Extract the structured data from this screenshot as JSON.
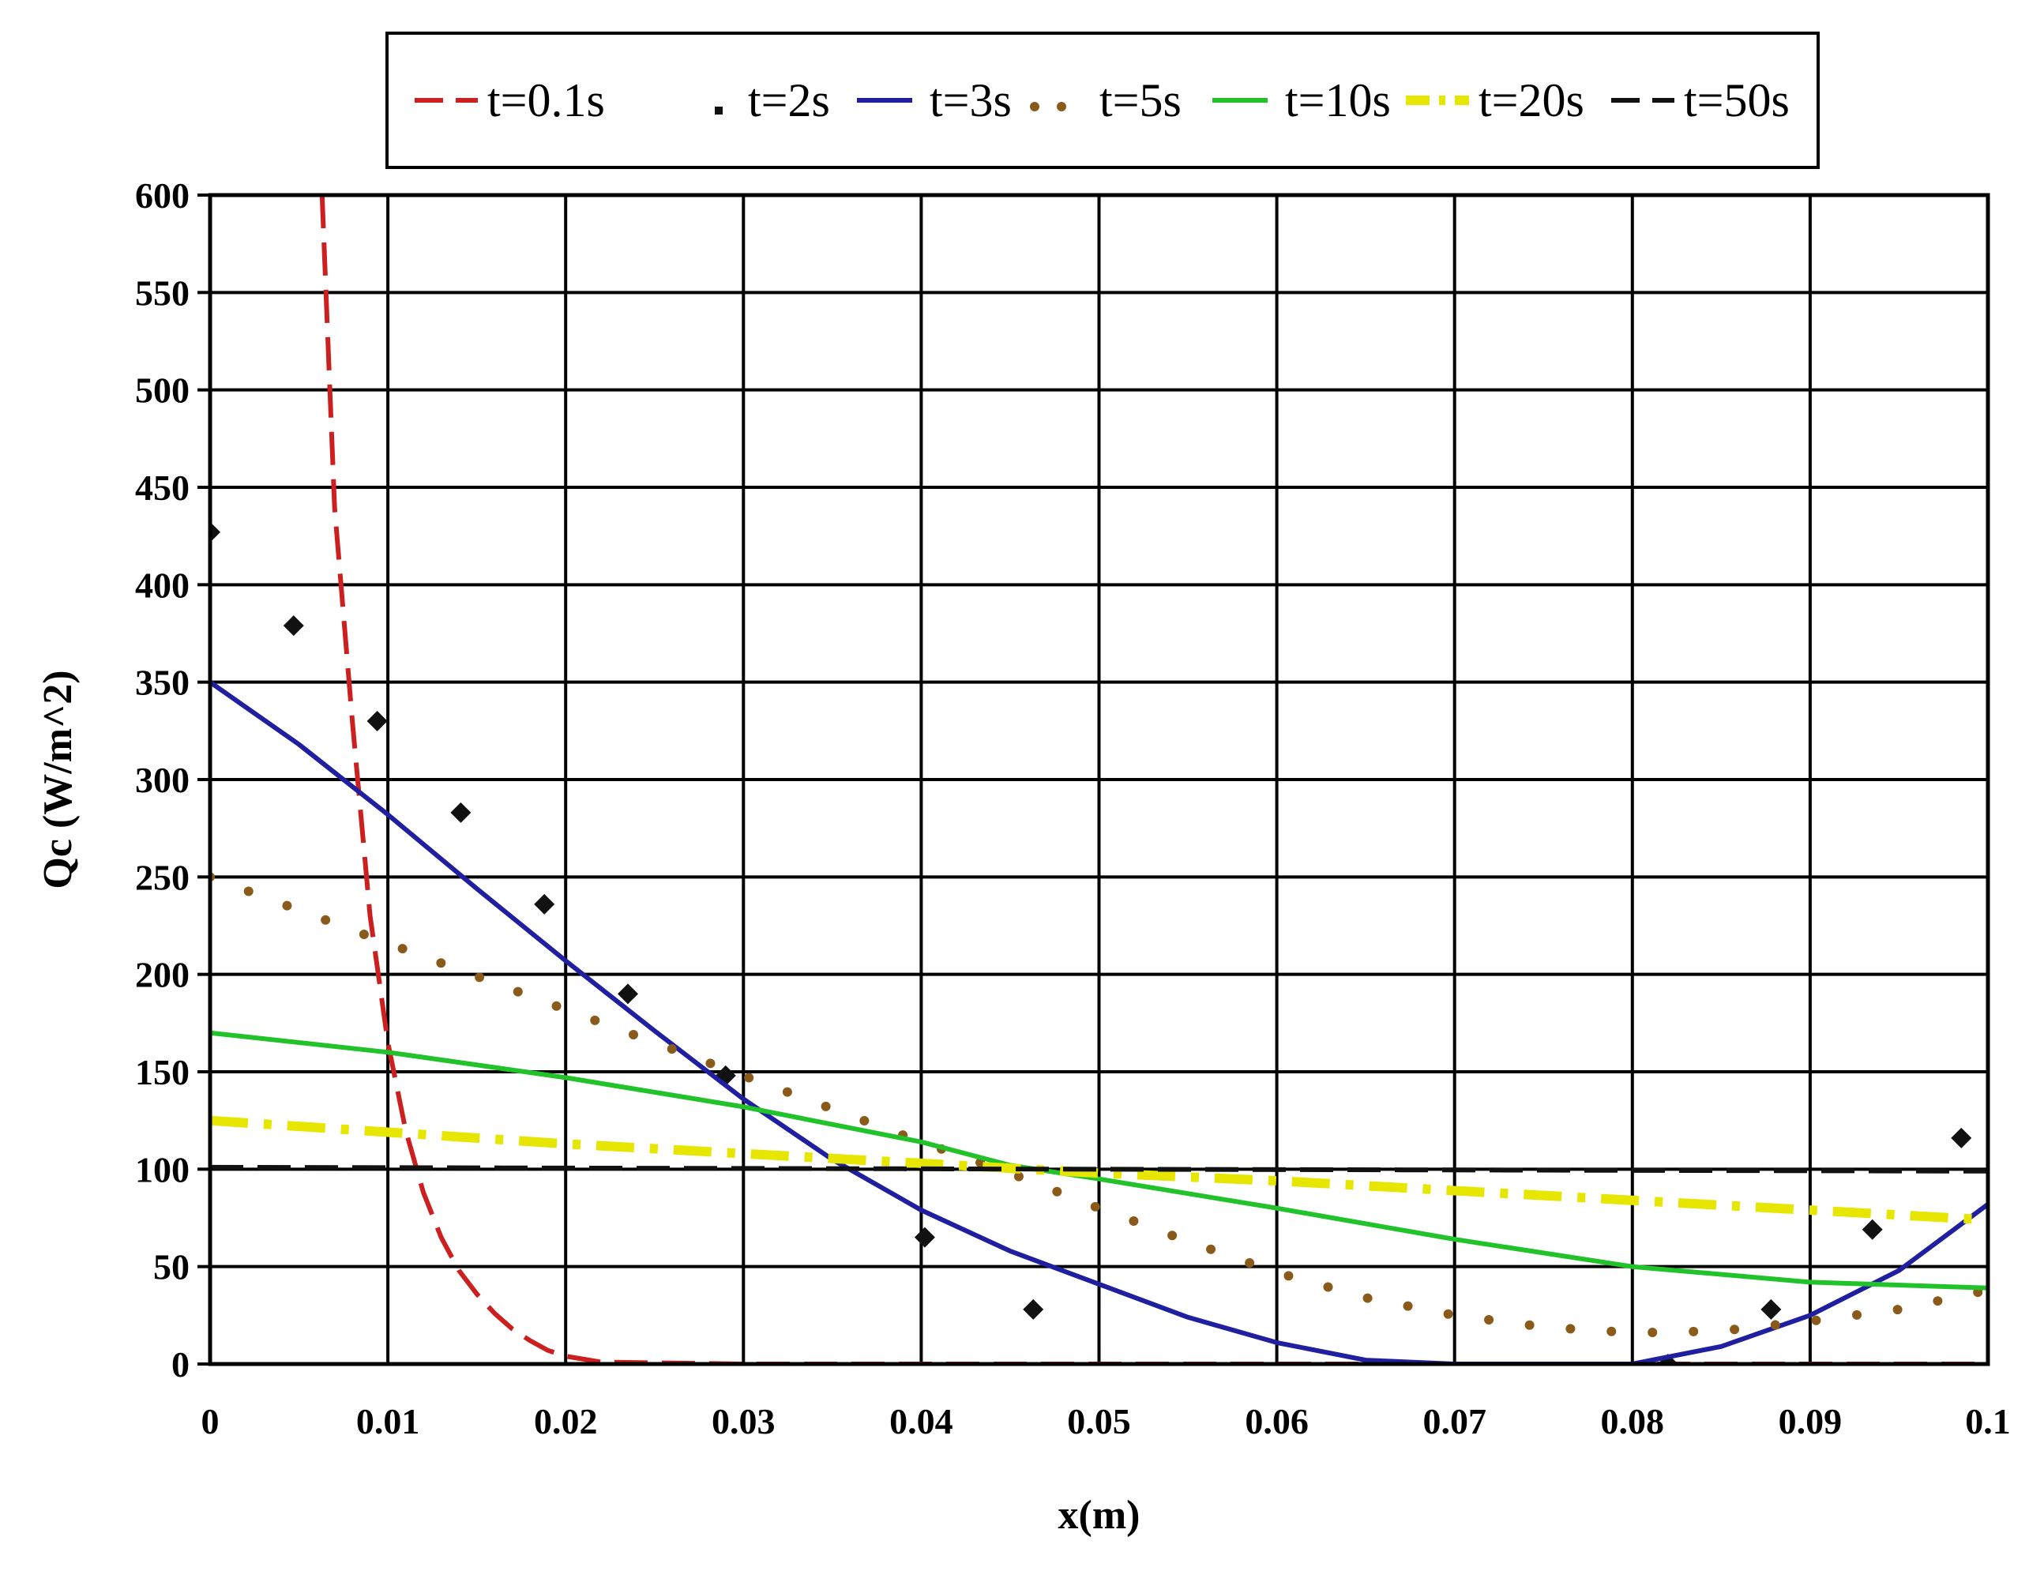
{
  "chart_data": {
    "type": "line",
    "title": "",
    "xlabel": "x(m)",
    "ylabel": "Qc (W/m^2)",
    "xlim": [
      0,
      0.1
    ],
    "ylim": [
      0,
      600
    ],
    "x_ticks": [
      "0",
      "0.01",
      "0.02",
      "0.03",
      "0.04",
      "0.05",
      "0.06",
      "0.07",
      "0.08",
      "0.09",
      "0.1"
    ],
    "y_ticks": [
      "0",
      "50",
      "100",
      "150",
      "200",
      "250",
      "300",
      "350",
      "400",
      "450",
      "500",
      "550",
      "600"
    ],
    "grid": true,
    "legend_position": "top",
    "series": [
      {
        "name": "t=0.1s",
        "color": "#cc1f1f",
        "style": "long-dash",
        "x": [
          0.0063,
          0.007,
          0.008,
          0.009,
          0.01,
          0.011,
          0.012,
          0.013,
          0.014,
          0.015,
          0.016,
          0.017,
          0.018,
          0.019,
          0.02,
          0.022,
          0.03,
          0.05,
          0.07,
          0.09,
          0.1
        ],
        "y": [
          600,
          440,
          330,
          230,
          165,
          120,
          88,
          65,
          48,
          36,
          26,
          18,
          12,
          7,
          4,
          1,
          0,
          0,
          0,
          0,
          0
        ]
      },
      {
        "name": "t=2s",
        "color": "#111111",
        "style": "sparse-markers",
        "x": [
          0.0,
          0.0047,
          0.0094,
          0.0141,
          0.0188,
          0.0235,
          0.029,
          0.0402,
          0.0463,
          0.082,
          0.0878,
          0.0935,
          0.0985
        ],
        "y": [
          427,
          379,
          330,
          283,
          236,
          190,
          148,
          65,
          28,
          0,
          28,
          69,
          116
        ]
      },
      {
        "name": "t=3s",
        "color": "#1f1fa0",
        "style": "solid",
        "x": [
          0.0,
          0.005,
          0.01,
          0.015,
          0.02,
          0.025,
          0.03,
          0.035,
          0.04,
          0.045,
          0.05,
          0.055,
          0.06,
          0.065,
          0.07,
          0.075,
          0.08,
          0.085,
          0.09,
          0.095,
          0.1
        ],
        "y": [
          350,
          318,
          282,
          244,
          207,
          171,
          136,
          105,
          79,
          58,
          41,
          24,
          11,
          2,
          0,
          0,
          0,
          9,
          25,
          48,
          82
        ]
      },
      {
        "name": "t=5s",
        "color": "#8a5a1a",
        "style": "dotted",
        "x": [
          0.0,
          0.005,
          0.01,
          0.015,
          0.02,
          0.025,
          0.03,
          0.035,
          0.04,
          0.045,
          0.05,
          0.055,
          0.06,
          0.065,
          0.07,
          0.075,
          0.08,
          0.085,
          0.09,
          0.095,
          0.1
        ],
        "y": [
          250,
          233,
          216,
          199,
          182,
          165,
          148,
          131,
          114,
          98,
          80,
          63,
          47,
          34,
          25,
          19,
          16,
          17,
          22,
          28,
          38
        ]
      },
      {
        "name": "t=10s",
        "color": "#22c32a",
        "style": "solid",
        "x": [
          0.0,
          0.01,
          0.02,
          0.03,
          0.04,
          0.045,
          0.05,
          0.06,
          0.07,
          0.08,
          0.09,
          0.1
        ],
        "y": [
          170,
          160,
          147,
          132,
          114,
          102,
          95,
          80,
          64,
          50,
          42,
          39
        ]
      },
      {
        "name": "t=20s",
        "color": "#e6e600",
        "style": "dash-dot",
        "x": [
          0.0,
          0.01,
          0.02,
          0.03,
          0.04,
          0.05,
          0.06,
          0.07,
          0.08,
          0.09,
          0.1
        ],
        "y": [
          125,
          119,
          113,
          108,
          103,
          98,
          94,
          89,
          84,
          79,
          74
        ]
      },
      {
        "name": "t=50s",
        "color": "#111111",
        "style": "long-dash",
        "x": [
          0.0,
          0.1
        ],
        "y": [
          101,
          99
        ]
      }
    ]
  }
}
